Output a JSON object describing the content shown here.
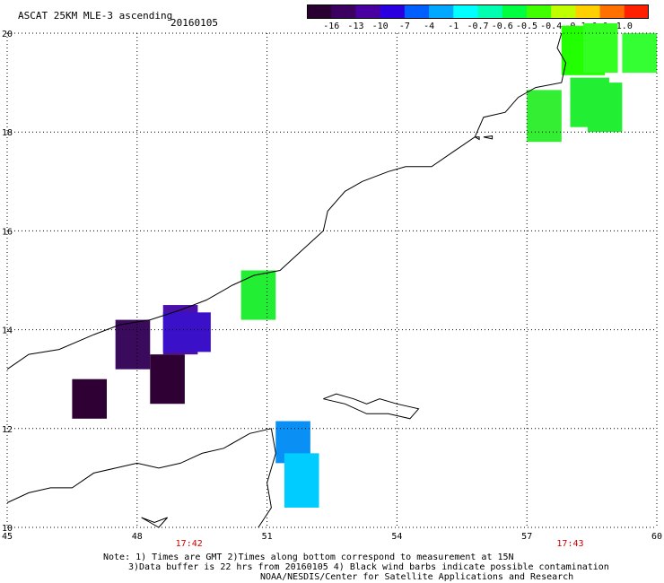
{
  "header": {
    "title": "ASCAT 25KM MLE-3 ascending",
    "date": "20160105"
  },
  "colorbar": {
    "labels": [
      "-16",
      "-13",
      "-10",
      "-7",
      "-4",
      "-1",
      "-0.7",
      "-0.6",
      "-0.5",
      "-0.4",
      "-0.1",
      "0.0",
      "1.0"
    ],
    "colors": [
      "#2a0033",
      "#3b0060",
      "#4a00a0",
      "#2a00e0",
      "#0060ff",
      "#00a8ff",
      "#00ffff",
      "#00ffb0",
      "#00ff40",
      "#40ff00",
      "#c0ff00",
      "#ffd000",
      "#ff7000",
      "#ff2000"
    ]
  },
  "axes": {
    "lon_ticks": [
      "45",
      "48",
      "51",
      "54",
      "57",
      "60"
    ],
    "lat_ticks": [
      "20",
      "18",
      "16",
      "14",
      "12",
      "10"
    ],
    "lon_range": [
      45,
      60
    ],
    "lat_range": [
      10,
      20
    ],
    "grid": "dotted"
  },
  "times": [
    {
      "label": "17:42",
      "lon": 49.2
    },
    {
      "label": "17:43",
      "lon": 58.0
    }
  ],
  "cells": [
    {
      "lon0": 57.0,
      "lon1": 57.8,
      "lat0": 17.8,
      "lat1": 18.85,
      "color": "#33ee33"
    },
    {
      "lon0": 57.8,
      "lon1": 58.8,
      "lat0": 19.15,
      "lat1": 20.15,
      "color": "#22ff00"
    },
    {
      "lon0": 58.3,
      "lon1": 59.1,
      "lat0": 19.2,
      "lat1": 20.2,
      "color": "#33ff22"
    },
    {
      "lon0": 59.2,
      "lon1": 60.0,
      "lat0": 19.2,
      "lat1": 20.0,
      "color": "#33ff33"
    },
    {
      "lon0": 58.0,
      "lon1": 58.9,
      "lat0": 18.1,
      "lat1": 19.1,
      "color": "#22ee33"
    },
    {
      "lon0": 58.4,
      "lon1": 59.2,
      "lat0": 18.0,
      "lat1": 19.0,
      "color": "#22ee33"
    },
    {
      "lon0": 50.4,
      "lon1": 51.2,
      "lat0": 14.2,
      "lat1": 15.2,
      "color": "#22ee33"
    },
    {
      "lon0": 47.5,
      "lon1": 48.3,
      "lat0": 13.2,
      "lat1": 14.2,
      "color": "#3a0a5c"
    },
    {
      "lon0": 48.6,
      "lon1": 49.4,
      "lat0": 13.5,
      "lat1": 14.5,
      "color": "#4a10a8"
    },
    {
      "lon0": 48.6,
      "lon1": 49.7,
      "lat0": 13.55,
      "lat1": 14.35,
      "color": "#3a10c8"
    },
    {
      "lon0": 48.3,
      "lon1": 49.1,
      "lat0": 12.5,
      "lat1": 13.5,
      "color": "#2e0033"
    },
    {
      "lon0": 46.5,
      "lon1": 47.3,
      "lat0": 12.2,
      "lat1": 13.0,
      "color": "#2e0033"
    },
    {
      "lon0": 51.2,
      "lon1": 52.0,
      "lat0": 11.3,
      "lat1": 12.15,
      "color": "#0a90f5"
    },
    {
      "lon0": 51.4,
      "lon1": 52.2,
      "lat0": 10.4,
      "lat1": 11.5,
      "color": "#00ccff"
    }
  ],
  "coastlines": [
    [
      [
        45.0,
        13.2
      ],
      [
        45.5,
        13.5
      ],
      [
        46.2,
        13.6
      ],
      [
        47.0,
        13.9
      ],
      [
        47.6,
        14.1
      ],
      [
        48.3,
        14.2
      ],
      [
        49.0,
        14.4
      ],
      [
        49.6,
        14.6
      ],
      [
        50.2,
        14.9
      ],
      [
        50.7,
        15.1
      ],
      [
        51.3,
        15.2
      ],
      [
        51.8,
        15.6
      ],
      [
        52.3,
        16.0
      ],
      [
        52.4,
        16.4
      ],
      [
        52.8,
        16.8
      ],
      [
        53.2,
        17.0
      ],
      [
        53.8,
        17.2
      ],
      [
        54.2,
        17.3
      ],
      [
        54.8,
        17.3
      ],
      [
        55.3,
        17.6
      ],
      [
        55.8,
        17.9
      ],
      [
        56.0,
        18.3
      ],
      [
        56.5,
        18.4
      ],
      [
        56.8,
        18.7
      ],
      [
        57.2,
        18.9
      ],
      [
        57.8,
        19.0
      ],
      [
        57.9,
        19.4
      ],
      [
        57.7,
        19.7
      ],
      [
        57.8,
        20.0
      ]
    ],
    [
      [
        45.0,
        10.5
      ],
      [
        45.5,
        10.7
      ],
      [
        46.0,
        10.8
      ],
      [
        46.5,
        10.8
      ],
      [
        47.0,
        11.1
      ],
      [
        47.5,
        11.2
      ],
      [
        48.0,
        11.3
      ],
      [
        48.5,
        11.2
      ],
      [
        49.0,
        11.3
      ],
      [
        49.5,
        11.5
      ],
      [
        50.0,
        11.6
      ],
      [
        50.6,
        11.9
      ],
      [
        51.1,
        12.0
      ],
      [
        51.2,
        11.5
      ],
      [
        51.0,
        10.9
      ],
      [
        51.1,
        10.4
      ],
      [
        50.8,
        10.0
      ]
    ]
  ],
  "islands": [
    [
      [
        52.3,
        12.6
      ],
      [
        52.6,
        12.7
      ],
      [
        53.0,
        12.6
      ],
      [
        53.3,
        12.5
      ],
      [
        53.6,
        12.6
      ],
      [
        54.0,
        12.5
      ],
      [
        54.5,
        12.4
      ],
      [
        54.3,
        12.2
      ],
      [
        53.8,
        12.3
      ],
      [
        53.3,
        12.3
      ],
      [
        52.8,
        12.5
      ],
      [
        52.3,
        12.6
      ]
    ],
    [
      [
        55.8,
        17.9
      ],
      [
        55.9,
        17.9
      ],
      [
        55.9,
        17.85
      ],
      [
        55.8,
        17.9
      ]
    ],
    [
      [
        56.0,
        17.9
      ],
      [
        56.2,
        17.92
      ],
      [
        56.2,
        17.86
      ],
      [
        56.0,
        17.9
      ]
    ],
    [
      [
        48.1,
        10.2
      ],
      [
        48.4,
        10.1
      ],
      [
        48.7,
        10.2
      ],
      [
        48.5,
        10.0
      ],
      [
        48.1,
        10.2
      ]
    ]
  ],
  "footer": {
    "line1": "Note: 1) Times are GMT 2)Times along bottom correspond to measurement at 15N",
    "line2": "3)Data buffer is 22 hrs from 20160105 4) Black wind barbs indicate possible contamination",
    "line3": "NOAA/NESDIS/Center for Satellite Applications and Research"
  }
}
